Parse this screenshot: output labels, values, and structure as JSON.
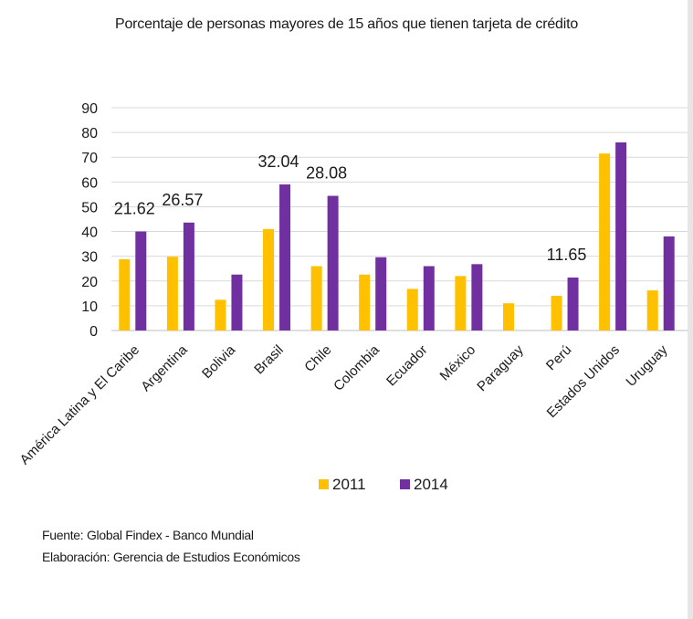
{
  "chart_data": {
    "type": "bar",
    "title": "Porcentaje de personas mayores de 15 años que tienen tarjeta de crédito",
    "xlabel": "",
    "ylabel": "",
    "ylim": [
      0,
      90
    ],
    "yticks": [
      0,
      10,
      20,
      30,
      40,
      50,
      60,
      70,
      80,
      90
    ],
    "grid": true,
    "legend": "bottom",
    "categories": [
      "América Latina y El Caribe",
      "Argentina",
      "Bolivia",
      "Brasil",
      "Chile",
      "Colombia",
      "Ecuador",
      "México",
      "Paraguay",
      "Perú",
      "Estados Unidos",
      "Uruguay"
    ],
    "series": [
      {
        "name": "2011",
        "color": "#ffc000",
        "values": [
          28.8,
          29.8,
          12.4,
          41.0,
          26.0,
          22.6,
          16.8,
          22.0,
          11.0,
          14.0,
          71.5,
          16.2
        ]
      },
      {
        "name": "2014",
        "color": "#7030a0",
        "values": [
          40.0,
          43.6,
          22.6,
          59.0,
          54.4,
          29.6,
          26.0,
          26.8,
          null,
          21.4,
          76.0,
          38.0
        ]
      }
    ],
    "annotations": [
      {
        "category": "América Latina y El Caribe",
        "text": "21.62"
      },
      {
        "category": "Argentina",
        "text": "26.57"
      },
      {
        "category": "Brasil",
        "text": "32.04"
      },
      {
        "category": "Chile",
        "text": "28.08"
      },
      {
        "category": "Perú",
        "text": "11.65"
      }
    ]
  },
  "footer": {
    "source": "Fuente: Global Findex - Banco Mundial",
    "elaboration": "Elaboración: Gerencia de Estudios Económicos"
  }
}
